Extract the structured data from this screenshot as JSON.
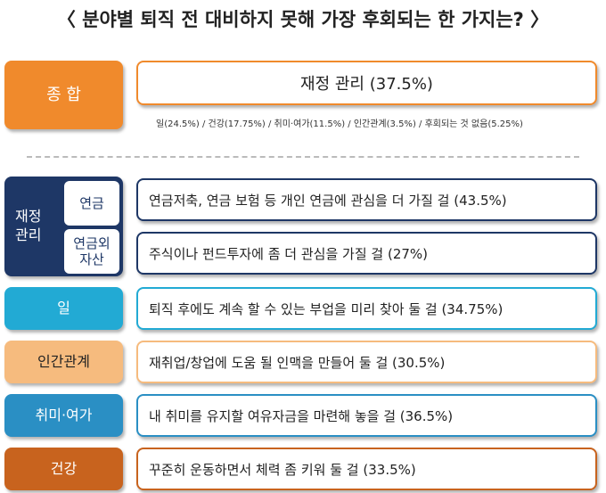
{
  "title": "〈 분야별 퇴직 전 대비하지 못해 가장 후회되는 한 가지는? 〉",
  "summary": {
    "label": "종 합",
    "result": "재정 관리 (37.5%)",
    "breakdown": "일(24.5%) / 건강(17.75%) / 취미·여가(11.5%) / 인간관계(3.5%) / 후회되는 것 없음(5.25%)"
  },
  "finance": {
    "label": "재정\n관리",
    "rows": [
      {
        "label": "연금",
        "text": "연금저축, 연금 보험 등 개인 연금에 관심을 더 가질 걸 (43.5%)"
      },
      {
        "label": "연금외\n자산",
        "text": "주식이나 펀드투자에 좀 더 관심을 가질 걸 (27%)"
      }
    ]
  },
  "rows": [
    {
      "label": "일",
      "text": "퇴직 후에도 계속 할 수 있는 부업을 미리 찾아 둘 걸 (34.75%)"
    },
    {
      "label": "인간관계",
      "text": "재취업/창업에 도움 될 인맥을 만들어 둘 걸 (30.5%)"
    },
    {
      "label": "취미·여가",
      "text": "내 취미를 유지할 여유자금을 마련해 놓을 걸 (36.5%)"
    },
    {
      "label": "건강",
      "text": "꾸준히 운동하면서 체력 좀 키워 둘 걸 (33.5%)"
    }
  ]
}
